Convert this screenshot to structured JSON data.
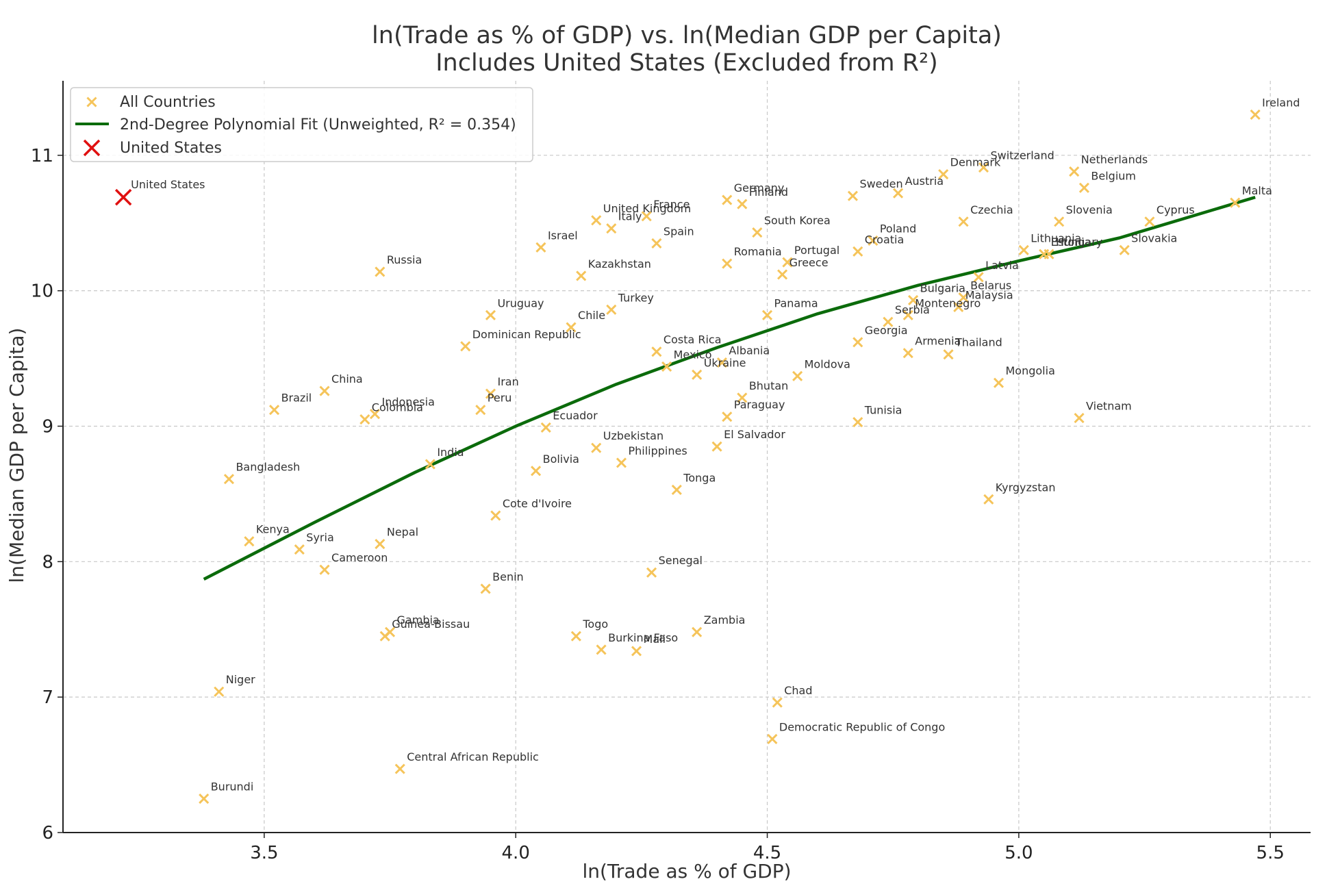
{
  "chart_data": {
    "type": "scatter",
    "title": "ln(Trade as % of GDP) vs. ln(Median GDP per Capita)",
    "subtitle": "Includes United States (Excluded from R²)",
    "xlabel": "ln(Trade as % of GDP)",
    "ylabel": "ln(Median GDP per Capita)",
    "xlim": [
      3.1,
      5.58
    ],
    "ylim": [
      6.0,
      11.55
    ],
    "x_ticks": [
      "3.5",
      "4.0",
      "4.5",
      "5.0",
      "5.5"
    ],
    "y_ticks": [
      "6",
      "7",
      "8",
      "9",
      "10",
      "11"
    ],
    "grid": true,
    "legend_position": "top-left",
    "legend": [
      {
        "label": "All Countries"
      },
      {
        "label": "2nd-Degree Polynomial Fit (Unweighted, R² = 0.354)"
      },
      {
        "label": "United States"
      }
    ],
    "colors": {
      "points": "#f5c45a",
      "fit": "#0b6b0b",
      "highlight": "#e01010",
      "grid": "#c8c8c8",
      "axis": "#222222"
    },
    "fit_curve": [
      [
        3.38,
        7.87
      ],
      [
        3.6,
        8.29
      ],
      [
        3.8,
        8.66
      ],
      [
        4.0,
        9.0
      ],
      [
        4.2,
        9.31
      ],
      [
        4.4,
        9.58
      ],
      [
        4.6,
        9.83
      ],
      [
        4.8,
        10.04
      ],
      [
        5.0,
        10.22
      ],
      [
        5.2,
        10.39
      ],
      [
        5.47,
        10.69
      ]
    ],
    "highlight_point": {
      "name": "United States",
      "x": 3.22,
      "y": 10.69
    },
    "points": [
      {
        "name": "Ireland",
        "x": 5.47,
        "y": 11.3
      },
      {
        "name": "Switzerland",
        "x": 4.93,
        "y": 10.91
      },
      {
        "name": "Netherlands",
        "x": 5.11,
        "y": 10.88
      },
      {
        "name": "Denmark",
        "x": 4.85,
        "y": 10.86
      },
      {
        "name": "Belgium",
        "x": 5.13,
        "y": 10.76
      },
      {
        "name": "Sweden",
        "x": 4.67,
        "y": 10.7
      },
      {
        "name": "Austria",
        "x": 4.76,
        "y": 10.72
      },
      {
        "name": "Germany",
        "x": 4.42,
        "y": 10.67
      },
      {
        "name": "Finland",
        "x": 4.45,
        "y": 10.64
      },
      {
        "name": "Malta",
        "x": 5.43,
        "y": 10.65
      },
      {
        "name": "United Kingdom",
        "x": 4.16,
        "y": 10.52
      },
      {
        "name": "France",
        "x": 4.26,
        "y": 10.55
      },
      {
        "name": "Italy",
        "x": 4.19,
        "y": 10.46
      },
      {
        "name": "Czechia",
        "x": 4.89,
        "y": 10.51
      },
      {
        "name": "Slovenia",
        "x": 5.08,
        "y": 10.51
      },
      {
        "name": "Cyprus",
        "x": 5.26,
        "y": 10.51
      },
      {
        "name": "South Korea",
        "x": 4.48,
        "y": 10.43
      },
      {
        "name": "Spain",
        "x": 4.28,
        "y": 10.35
      },
      {
        "name": "Israel",
        "x": 4.05,
        "y": 10.32
      },
      {
        "name": "Poland",
        "x": 4.71,
        "y": 10.37
      },
      {
        "name": "Croatia",
        "x": 4.68,
        "y": 10.29
      },
      {
        "name": "Lithuania",
        "x": 5.01,
        "y": 10.3
      },
      {
        "name": "Estonia",
        "x": 5.05,
        "y": 10.27
      },
      {
        "name": "Hungary",
        "x": 5.06,
        "y": 10.27
      },
      {
        "name": "Slovakia",
        "x": 5.21,
        "y": 10.3
      },
      {
        "name": "Romania",
        "x": 4.42,
        "y": 10.2
      },
      {
        "name": "Portugal",
        "x": 4.54,
        "y": 10.21
      },
      {
        "name": "Greece",
        "x": 4.53,
        "y": 10.12
      },
      {
        "name": "Kazakhstan",
        "x": 4.13,
        "y": 10.11
      },
      {
        "name": "Russia",
        "x": 3.73,
        "y": 10.14
      },
      {
        "name": "Latvia",
        "x": 4.92,
        "y": 10.1
      },
      {
        "name": "Bulgaria",
        "x": 4.79,
        "y": 9.93
      },
      {
        "name": "Belarus",
        "x": 4.89,
        "y": 9.95
      },
      {
        "name": "Malaysia",
        "x": 4.88,
        "y": 9.88
      },
      {
        "name": "Montenegro",
        "x": 4.78,
        "y": 9.82
      },
      {
        "name": "Serbia",
        "x": 4.74,
        "y": 9.77
      },
      {
        "name": "Uruguay",
        "x": 3.95,
        "y": 9.82
      },
      {
        "name": "Turkey",
        "x": 4.19,
        "y": 9.86
      },
      {
        "name": "Panama",
        "x": 4.5,
        "y": 9.82
      },
      {
        "name": "Chile",
        "x": 4.11,
        "y": 9.73
      },
      {
        "name": "Dominican Republic",
        "x": 3.9,
        "y": 9.59
      },
      {
        "name": "Georgia",
        "x": 4.68,
        "y": 9.62
      },
      {
        "name": "Costa Rica",
        "x": 4.28,
        "y": 9.55
      },
      {
        "name": "Armenia",
        "x": 4.78,
        "y": 9.54
      },
      {
        "name": "Thailand",
        "x": 4.86,
        "y": 9.53
      },
      {
        "name": "Albania",
        "x": 4.41,
        "y": 9.47
      },
      {
        "name": "Mexico",
        "x": 4.3,
        "y": 9.44
      },
      {
        "name": "Ukraine",
        "x": 4.36,
        "y": 9.38
      },
      {
        "name": "Moldova",
        "x": 4.56,
        "y": 9.37
      },
      {
        "name": "Mongolia",
        "x": 4.96,
        "y": 9.32
      },
      {
        "name": "China",
        "x": 3.62,
        "y": 9.26
      },
      {
        "name": "Iran",
        "x": 3.95,
        "y": 9.24
      },
      {
        "name": "Bhutan",
        "x": 4.45,
        "y": 9.21
      },
      {
        "name": "Brazil",
        "x": 3.52,
        "y": 9.12
      },
      {
        "name": "Peru",
        "x": 3.93,
        "y": 9.12
      },
      {
        "name": "Indonesia",
        "x": 3.72,
        "y": 9.09
      },
      {
        "name": "Colombia",
        "x": 3.7,
        "y": 9.05
      },
      {
        "name": "Paraguay",
        "x": 4.42,
        "y": 9.07
      },
      {
        "name": "Vietnam",
        "x": 5.12,
        "y": 9.06
      },
      {
        "name": "Tunisia",
        "x": 4.68,
        "y": 9.03
      },
      {
        "name": "Ecuador",
        "x": 4.06,
        "y": 8.99
      },
      {
        "name": "El Salvador",
        "x": 4.4,
        "y": 8.85
      },
      {
        "name": "Uzbekistan",
        "x": 4.16,
        "y": 8.84
      },
      {
        "name": "Philippines",
        "x": 4.21,
        "y": 8.73
      },
      {
        "name": "India",
        "x": 3.83,
        "y": 8.72
      },
      {
        "name": "Bolivia",
        "x": 4.04,
        "y": 8.67
      },
      {
        "name": "Bangladesh",
        "x": 3.43,
        "y": 8.61
      },
      {
        "name": "Tonga",
        "x": 4.32,
        "y": 8.53
      },
      {
        "name": "Kyrgyzstan",
        "x": 4.94,
        "y": 8.46
      },
      {
        "name": "Cote d'Ivoire",
        "x": 3.96,
        "y": 8.34
      },
      {
        "name": "Kenya",
        "x": 3.47,
        "y": 8.15
      },
      {
        "name": "Nepal",
        "x": 3.73,
        "y": 8.13
      },
      {
        "name": "Syria",
        "x": 3.57,
        "y": 8.09
      },
      {
        "name": "Cameroon",
        "x": 3.62,
        "y": 7.94
      },
      {
        "name": "Senegal",
        "x": 4.27,
        "y": 7.92
      },
      {
        "name": "Benin",
        "x": 3.94,
        "y": 7.8
      },
      {
        "name": "Gambia",
        "x": 3.75,
        "y": 7.48
      },
      {
        "name": "Guinea-Bissau",
        "x": 3.74,
        "y": 7.45
      },
      {
        "name": "Zambia",
        "x": 4.36,
        "y": 7.48
      },
      {
        "name": "Togo",
        "x": 4.12,
        "y": 7.45
      },
      {
        "name": "Burkina Faso",
        "x": 4.17,
        "y": 7.35
      },
      {
        "name": "Mali",
        "x": 4.24,
        "y": 7.34
      },
      {
        "name": "Niger",
        "x": 3.41,
        "y": 7.04
      },
      {
        "name": "Chad",
        "x": 4.52,
        "y": 6.96
      },
      {
        "name": "Democratic Republic of Congo",
        "x": 4.51,
        "y": 6.69
      },
      {
        "name": "Central African Republic",
        "x": 3.77,
        "y": 6.47
      },
      {
        "name": "Burundi",
        "x": 3.38,
        "y": 6.25
      }
    ]
  }
}
